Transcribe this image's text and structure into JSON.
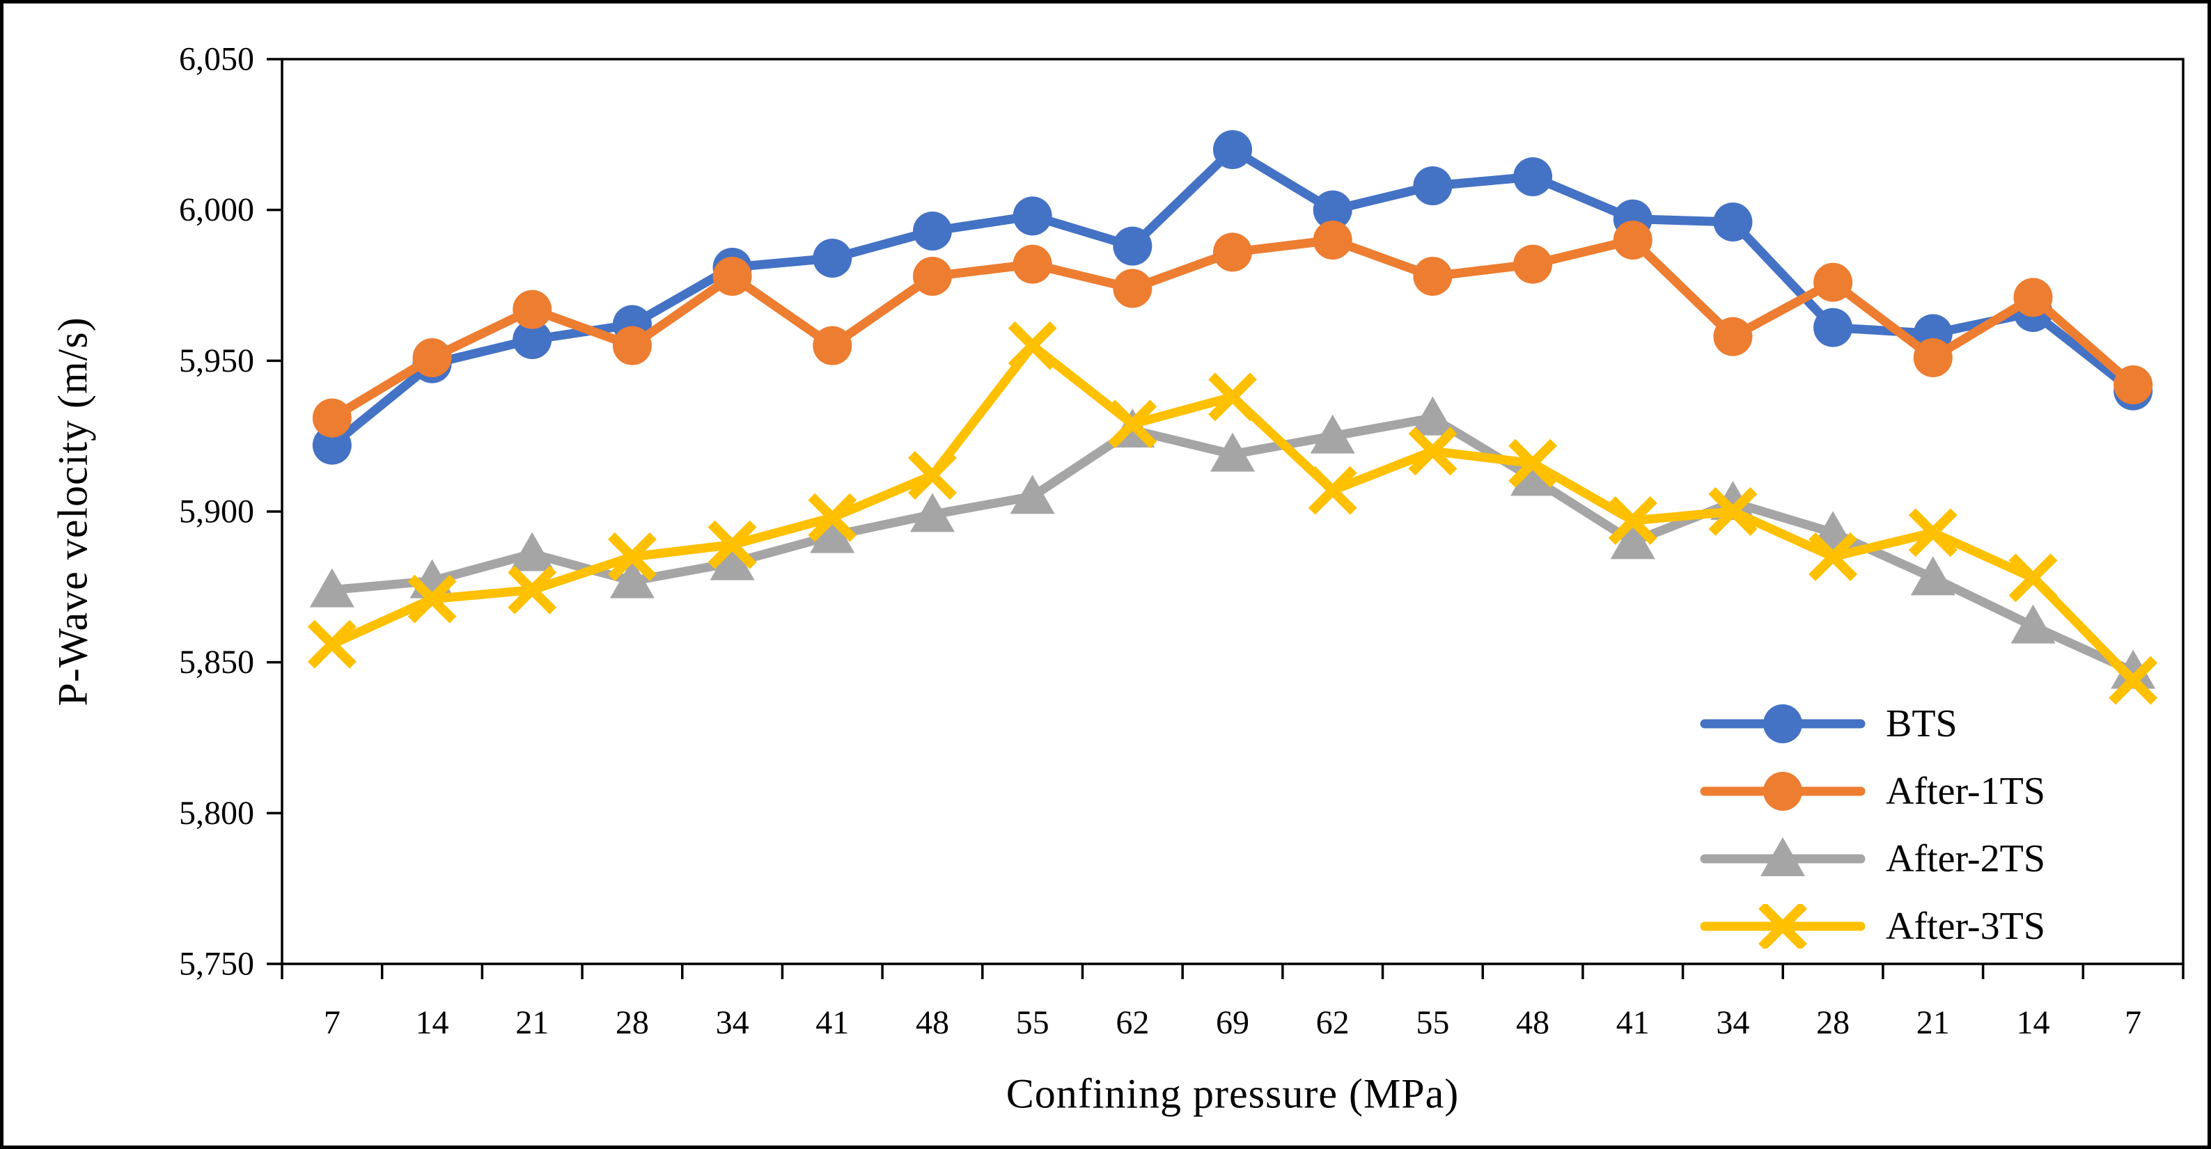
{
  "figure": {
    "background_color": "#ffffff",
    "border_color": "#000000"
  },
  "chart_data": {
    "type": "line",
    "title": "",
    "xlabel": "Confining pressure (MPa)",
    "ylabel": "P-Wave velocity (m/s)",
    "categories": [
      7,
      14,
      21,
      28,
      34,
      41,
      48,
      55,
      62,
      69,
      62,
      55,
      48,
      41,
      34,
      28,
      21,
      14,
      7
    ],
    "y_axis": {
      "min": 5750,
      "max": 6050,
      "step": 50,
      "ticks": [
        5750,
        5800,
        5850,
        5900,
        5950,
        6000,
        6050
      ],
      "tick_labels": [
        "5,750",
        "5,800",
        "5,850",
        "5,900",
        "5,950",
        "6,000",
        "6,050"
      ]
    },
    "grid": false,
    "legend_position": "inside-right-lower",
    "series": [
      {
        "name": "BTS",
        "color": "#4472C4",
        "marker": "circle",
        "values": [
          5922,
          5949,
          5957,
          5962,
          5981,
          5984,
          5993,
          5998,
          5988,
          6020,
          6000,
          6008,
          6011,
          5997,
          5996,
          5961,
          5959,
          5966,
          5940
        ]
      },
      {
        "name": "After-1TS",
        "color": "#ED7D31",
        "marker": "circle",
        "values": [
          5931,
          5951,
          5967,
          5955,
          5978,
          5955,
          5978,
          5982,
          5974,
          5986,
          5990,
          5978,
          5982,
          5990,
          5958,
          5976,
          5951,
          5971,
          5942
        ]
      },
      {
        "name": "After-2TS",
        "color": "#A5A5A5",
        "marker": "triangle",
        "values": [
          5874,
          5877,
          5886,
          5877,
          5883,
          5892,
          5899,
          5905,
          5927,
          5919,
          5925,
          5931,
          5911,
          5890,
          5903,
          5893,
          5878,
          5862,
          5847
        ]
      },
      {
        "name": "After-3TS",
        "color": "#FFC000",
        "marker": "x",
        "values": [
          5856,
          5871,
          5874,
          5885,
          5889,
          5898,
          5912,
          5955,
          5929,
          5938,
          5907,
          5920,
          5916,
          5897,
          5900,
          5885,
          5893,
          5878,
          5844
        ]
      }
    ]
  }
}
